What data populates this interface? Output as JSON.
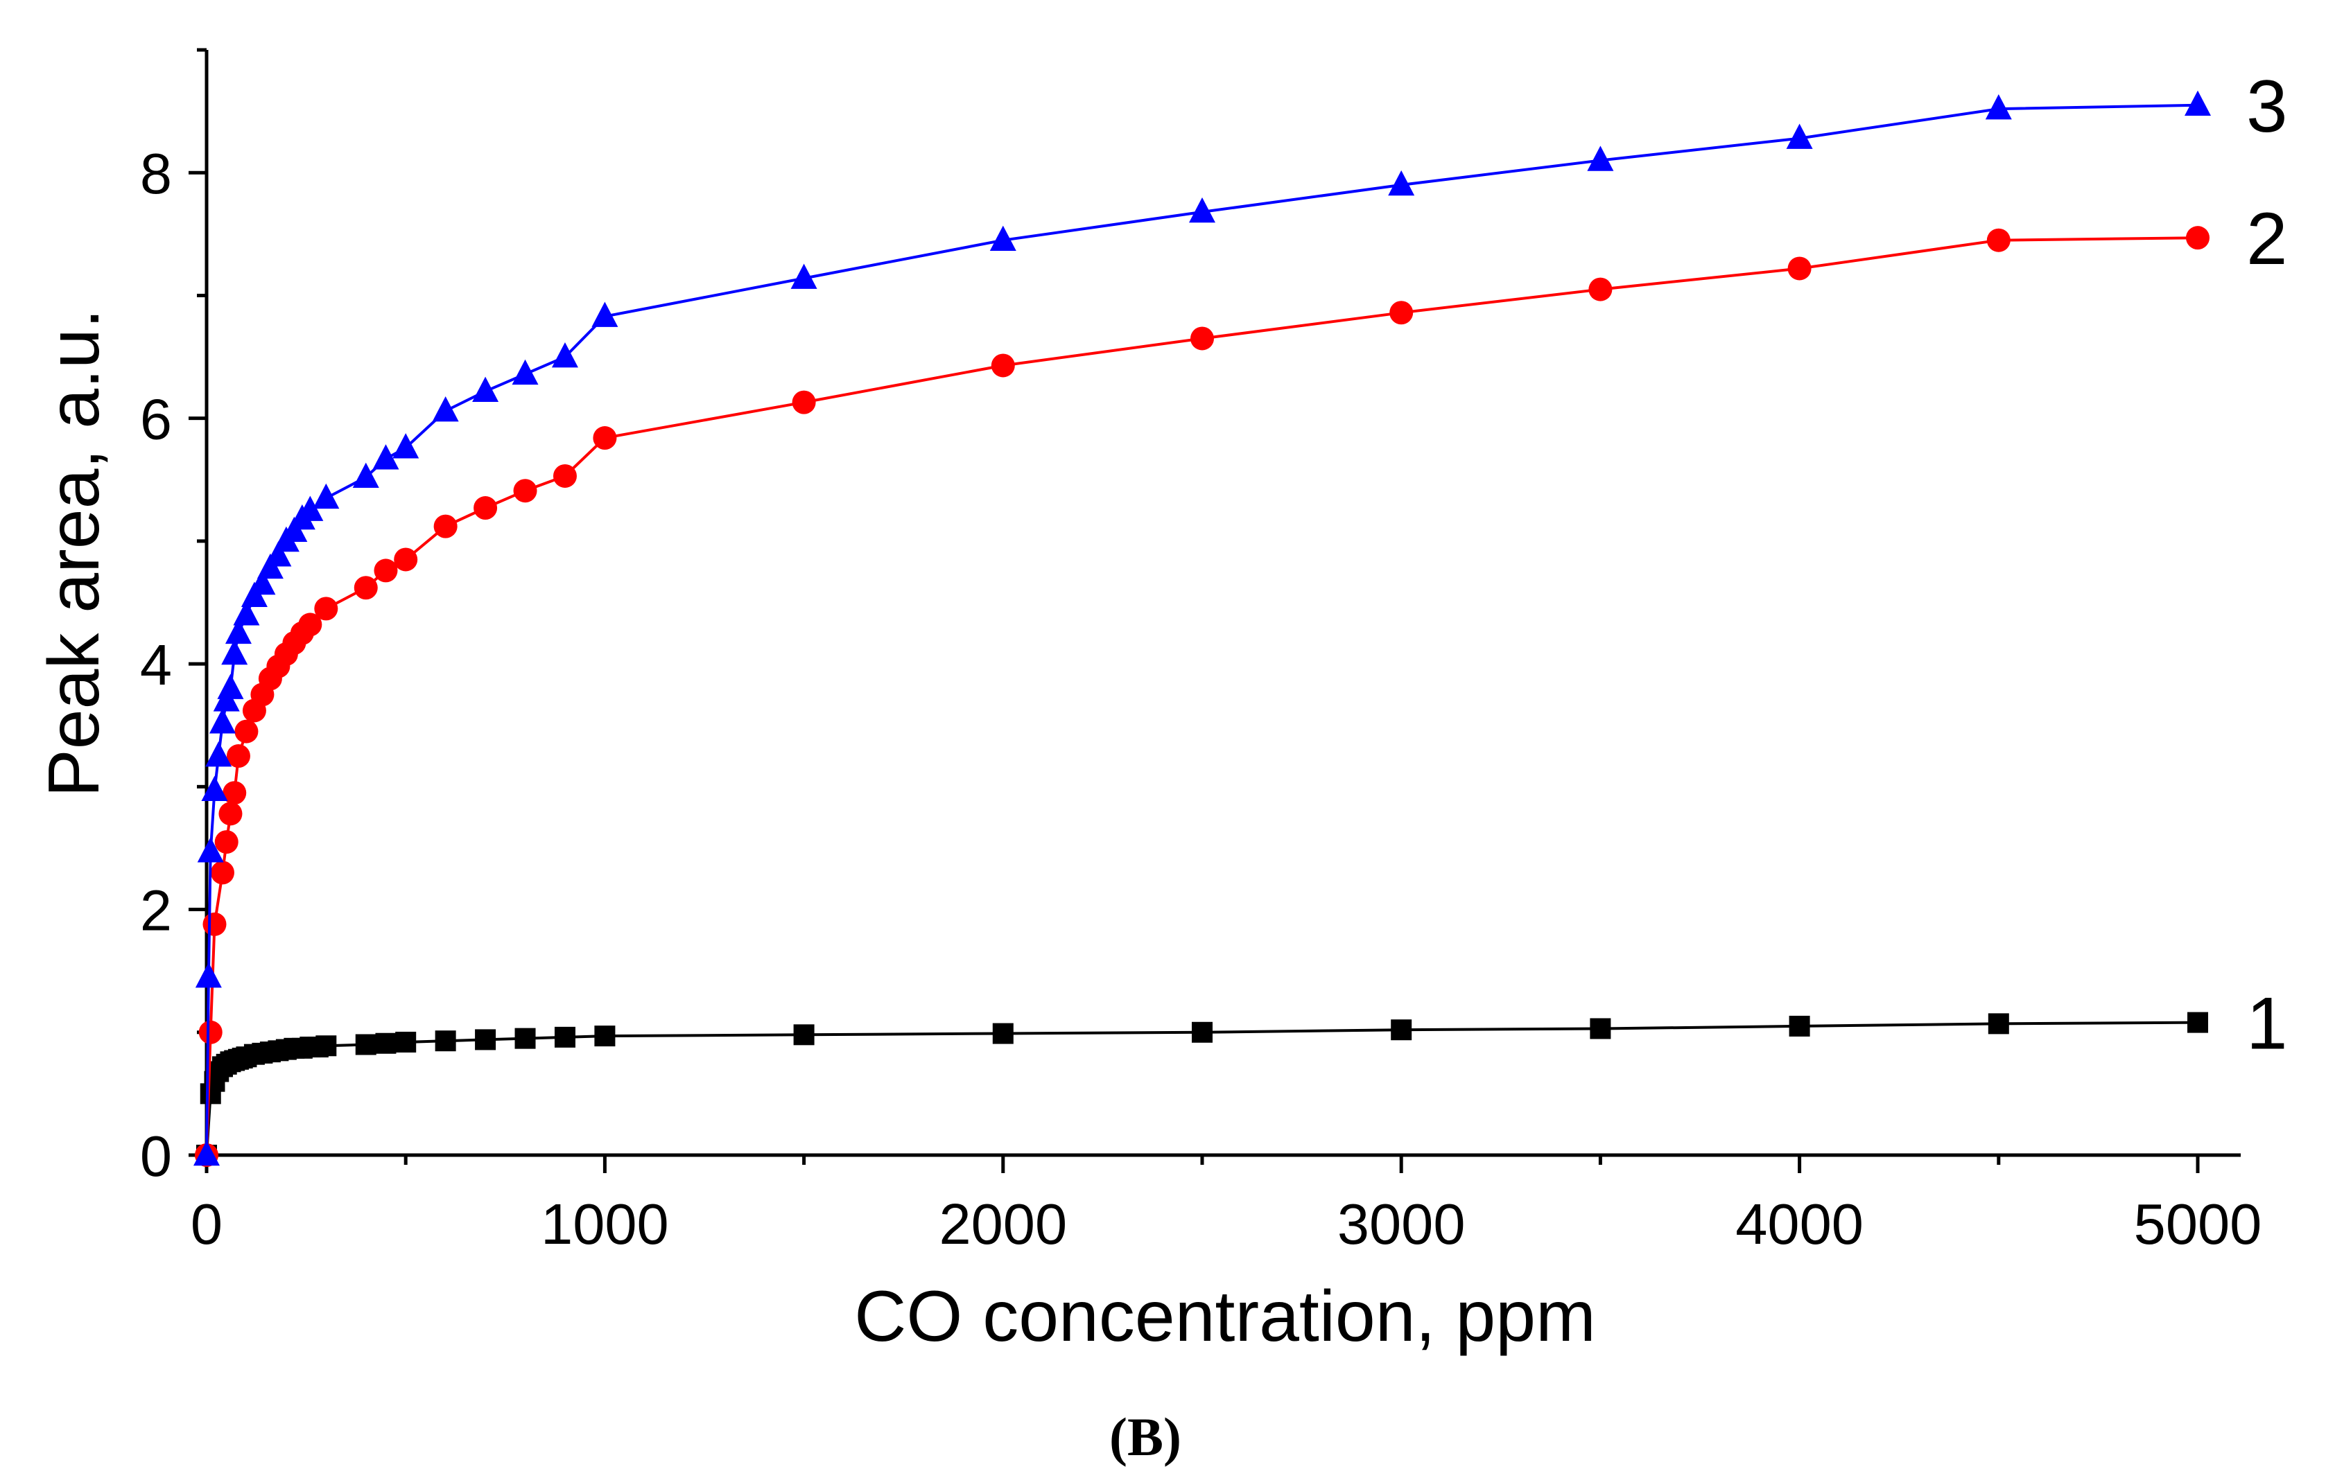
{
  "chart_data": {
    "type": "line",
    "title": "",
    "xlabel": "CO concentration, ppm",
    "ylabel": "Peak area, a.u.",
    "xlim": [
      0,
      5000
    ],
    "ylim": [
      0,
      9
    ],
    "xticks": [
      0,
      1000,
      2000,
      3000,
      4000,
      5000
    ],
    "yticks": [
      0,
      2,
      4,
      6,
      8
    ],
    "grid": false,
    "panel_label": "(B)",
    "series": [
      {
        "name": "1",
        "color": "#000000",
        "marker": "square",
        "line_style": "solid",
        "x": [
          0,
          10,
          20,
          30,
          40,
          50,
          60,
          70,
          80,
          90,
          100,
          120,
          140,
          160,
          180,
          200,
          220,
          240,
          260,
          280,
          300,
          400,
          450,
          500,
          600,
          700,
          800,
          900,
          1000,
          1500,
          2000,
          2500,
          3000,
          3500,
          4000,
          4500,
          5000
        ],
        "y": [
          0.0,
          0.5,
          0.6,
          0.68,
          0.72,
          0.74,
          0.76,
          0.77,
          0.78,
          0.79,
          0.8,
          0.82,
          0.83,
          0.84,
          0.85,
          0.86,
          0.87,
          0.87,
          0.88,
          0.88,
          0.89,
          0.9,
          0.91,
          0.92,
          0.93,
          0.94,
          0.95,
          0.96,
          0.97,
          0.98,
          0.99,
          1.0,
          1.02,
          1.03,
          1.05,
          1.07,
          1.08
        ]
      },
      {
        "name": "2",
        "color": "#ff0000",
        "marker": "circle",
        "line_style": "solid",
        "x": [
          0,
          10,
          20,
          40,
          50,
          60,
          70,
          80,
          100,
          120,
          140,
          160,
          180,
          200,
          220,
          240,
          260,
          300,
          400,
          450,
          500,
          600,
          700,
          800,
          900,
          1000,
          1500,
          2000,
          2500,
          3000,
          3500,
          4000,
          4500,
          5000
        ],
        "y": [
          0.0,
          1.0,
          1.88,
          2.3,
          2.55,
          2.78,
          2.95,
          3.25,
          3.45,
          3.62,
          3.75,
          3.88,
          3.98,
          4.08,
          4.17,
          4.25,
          4.32,
          4.45,
          4.62,
          4.76,
          4.85,
          5.12,
          5.27,
          5.41,
          5.53,
          5.84,
          6.13,
          6.43,
          6.65,
          6.86,
          7.05,
          7.22,
          7.45,
          7.47
        ]
      },
      {
        "name": "3",
        "color": "#0000ff",
        "marker": "triangle",
        "line_style": "solid",
        "x": [
          0,
          5,
          10,
          20,
          30,
          40,
          50,
          60,
          70,
          80,
          100,
          120,
          140,
          160,
          180,
          200,
          220,
          240,
          260,
          300,
          400,
          450,
          500,
          600,
          700,
          800,
          900,
          1000,
          1500,
          2000,
          2500,
          3000,
          3500,
          4000,
          4500,
          5000
        ],
        "y": [
          0.0,
          1.45,
          2.47,
          2.97,
          3.25,
          3.52,
          3.7,
          3.8,
          4.08,
          4.25,
          4.4,
          4.55,
          4.65,
          4.78,
          4.88,
          5.0,
          5.08,
          5.18,
          5.25,
          5.35,
          5.52,
          5.67,
          5.76,
          6.06,
          6.22,
          6.36,
          6.5,
          6.83,
          7.14,
          7.45,
          7.68,
          7.9,
          8.1,
          8.28,
          8.52,
          8.55
        ]
      }
    ]
  }
}
